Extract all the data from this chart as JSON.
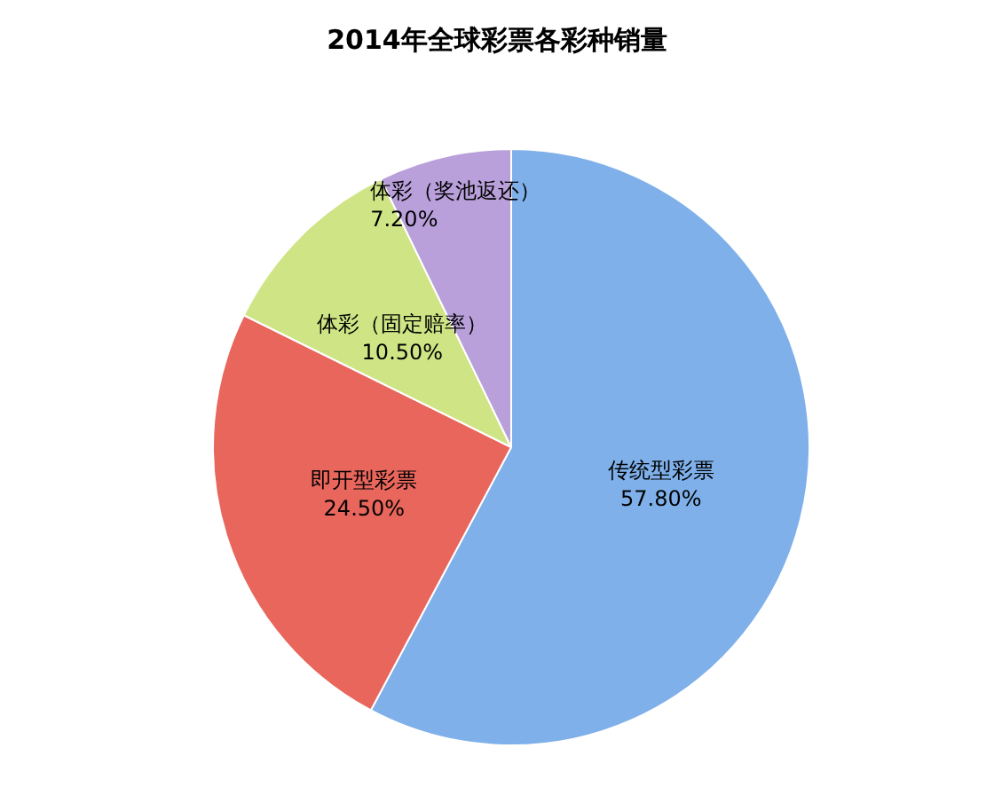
{
  "chart_data": {
    "type": "pie",
    "title": "2014年全球彩票各彩种销量",
    "categories": [
      "传统型彩票",
      "即开型彩票",
      "体彩（固定赔率）",
      "体彩（奖池返还）"
    ],
    "values": [
      57.8,
      24.5,
      10.5,
      7.2
    ],
    "value_labels": [
      "57.80%",
      "24.50%",
      "10.50%",
      "7.20%"
    ],
    "colors": [
      "#7fb0ea",
      "#e8665c",
      "#cfe585",
      "#b9a0da"
    ],
    "legend": false
  }
}
